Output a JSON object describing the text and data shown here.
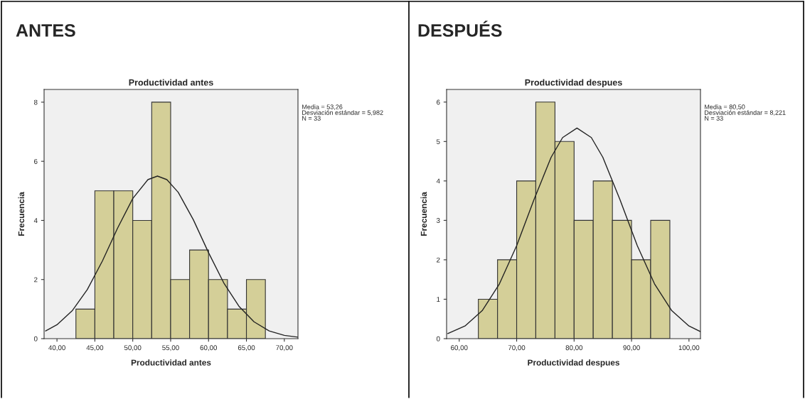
{
  "chart_data": [
    {
      "type": "histogram",
      "title": "ANTES",
      "subtitle": "Productividad antes",
      "xlabel": "Productividad antes",
      "ylabel": "Frecuencia",
      "annotations": [
        "Media = 53,26\nDesviación estándar = 5,982\nN = 33"
      ],
      "xlim": [
        38.3,
        71.8
      ],
      "xticks": [
        {
          "value": 40,
          "label": "40,00"
        },
        {
          "value": 45,
          "label": "45,00"
        },
        {
          "value": 50,
          "label": "50,00"
        },
        {
          "value": 55,
          "label": "55,00"
        },
        {
          "value": 60,
          "label": "60,00"
        },
        {
          "value": 65,
          "label": "65,00"
        },
        {
          "value": 70,
          "label": "70,00"
        }
      ],
      "ylim": [
        0,
        8.43
      ],
      "yticks": [
        0,
        2,
        4,
        6,
        8
      ],
      "series": [
        {
          "color": "#d4cf98",
          "bins": [
            42.5,
            45,
            47.5,
            50,
            52.5,
            55,
            57.5,
            60,
            62.5,
            65,
            67.5
          ],
          "values": [
            1,
            5,
            5,
            4,
            8,
            2,
            3,
            2,
            1,
            2
          ]
        },
        {
          "type": "line",
          "color": "#222222",
          "x": [
            38.5,
            40,
            42,
            44,
            46,
            48,
            50,
            52,
            53.26,
            54.5,
            56,
            58,
            60,
            62,
            64,
            66,
            68,
            70,
            71.8
          ],
          "values": [
            0.26,
            0.47,
            0.94,
            1.66,
            2.63,
            3.74,
            4.74,
            5.38,
            5.5,
            5.38,
            4.95,
            4.02,
            2.91,
            1.89,
            1.1,
            0.57,
            0.26,
            0.11,
            0.05
          ]
        }
      ]
    },
    {
      "type": "histogram",
      "title": "DESPUÉS",
      "subtitle": "Productividad despues",
      "xlabel": "Productividad despues",
      "ylabel": "Frecuencia",
      "annotations": [
        "Media = 80,50\nDesviación estándar = 8,221\nN = 33"
      ],
      "xlim": [
        57.8,
        102.0
      ],
      "xticks": [
        {
          "value": 60,
          "label": "60,00"
        },
        {
          "value": 70,
          "label": "70,00"
        },
        {
          "value": 80,
          "label": "80,00"
        },
        {
          "value": 90,
          "label": "90,00"
        },
        {
          "value": 100,
          "label": "100,00"
        }
      ],
      "ylim": [
        0,
        6.32
      ],
      "yticks": [
        0,
        1,
        2,
        3,
        4,
        5,
        6
      ],
      "series": [
        {
          "color": "#d4cf98",
          "bins": [
            63.33,
            66.67,
            70,
            73.33,
            76.67,
            80,
            83.33,
            86.67,
            90,
            93.33,
            96.67
          ],
          "values": [
            1,
            2,
            4,
            6,
            5,
            3,
            4,
            3,
            2,
            3
          ]
        },
        {
          "type": "line",
          "color": "#222222",
          "x": [
            58,
            61,
            64,
            67,
            70,
            73,
            76,
            78,
            80.5,
            83,
            85,
            88,
            91,
            94,
            97,
            100,
            102
          ],
          "values": [
            0.13,
            0.32,
            0.71,
            1.39,
            2.36,
            3.52,
            4.6,
            5.1,
            5.34,
            5.1,
            4.6,
            3.52,
            2.36,
            1.39,
            0.71,
            0.32,
            0.18
          ]
        }
      ]
    }
  ]
}
